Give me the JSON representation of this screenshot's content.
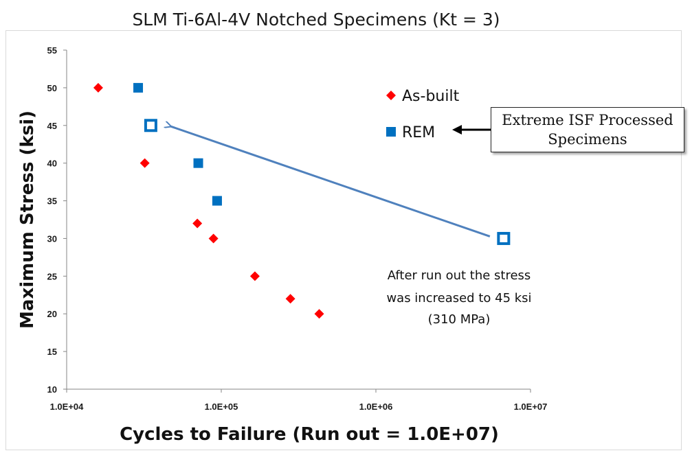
{
  "chart_data": {
    "type": "scatter",
    "title": "SLM Ti-6Al-4V Notched Specimens (Kt = 3)",
    "xlabel": "Cycles to Failure (Run out = 1.0E+07)",
    "ylabel": "Maximum Stress (ksi)",
    "x_scale": "log",
    "xlim": [
      10000,
      10000000
    ],
    "ylim": [
      10,
      55
    ],
    "x_ticks": [
      "1.0E+04",
      "1.0E+05",
      "1.0E+06",
      "1.0E+07"
    ],
    "y_ticks": [
      "10",
      "15",
      "20",
      "25",
      "30",
      "35",
      "40",
      "45",
      "50",
      "55"
    ],
    "grid": false,
    "legend_position": "top-right",
    "series": [
      {
        "name": "As-built",
        "marker": "diamond",
        "color": "#ff0000",
        "points": [
          {
            "x": 16000,
            "y": 50
          },
          {
            "x": 32000,
            "y": 40
          },
          {
            "x": 70000,
            "y": 32
          },
          {
            "x": 89000,
            "y": 30
          },
          {
            "x": 165000,
            "y": 25
          },
          {
            "x": 280000,
            "y": 22
          },
          {
            "x": 430000,
            "y": 20
          }
        ]
      },
      {
        "name": "REM",
        "marker": "square",
        "color": "#0070c0",
        "points": [
          {
            "x": 29000,
            "y": 50
          },
          {
            "x": 71000,
            "y": 40
          },
          {
            "x": 94000,
            "y": 35
          }
        ]
      },
      {
        "name": "Extreme ISF Processed Specimens",
        "marker": "hollow-square",
        "color": "#0070c0",
        "points": [
          {
            "x": 35000,
            "y": 45
          },
          {
            "x": 6700000,
            "y": 30
          }
        ]
      }
    ],
    "annotations": {
      "callout": [
        "Extreme ISF Processed",
        "Specimens"
      ],
      "runout_note": [
        "After run out the stress",
        "was increased to 45 ksi",
        "(310 MPa)"
      ]
    }
  }
}
